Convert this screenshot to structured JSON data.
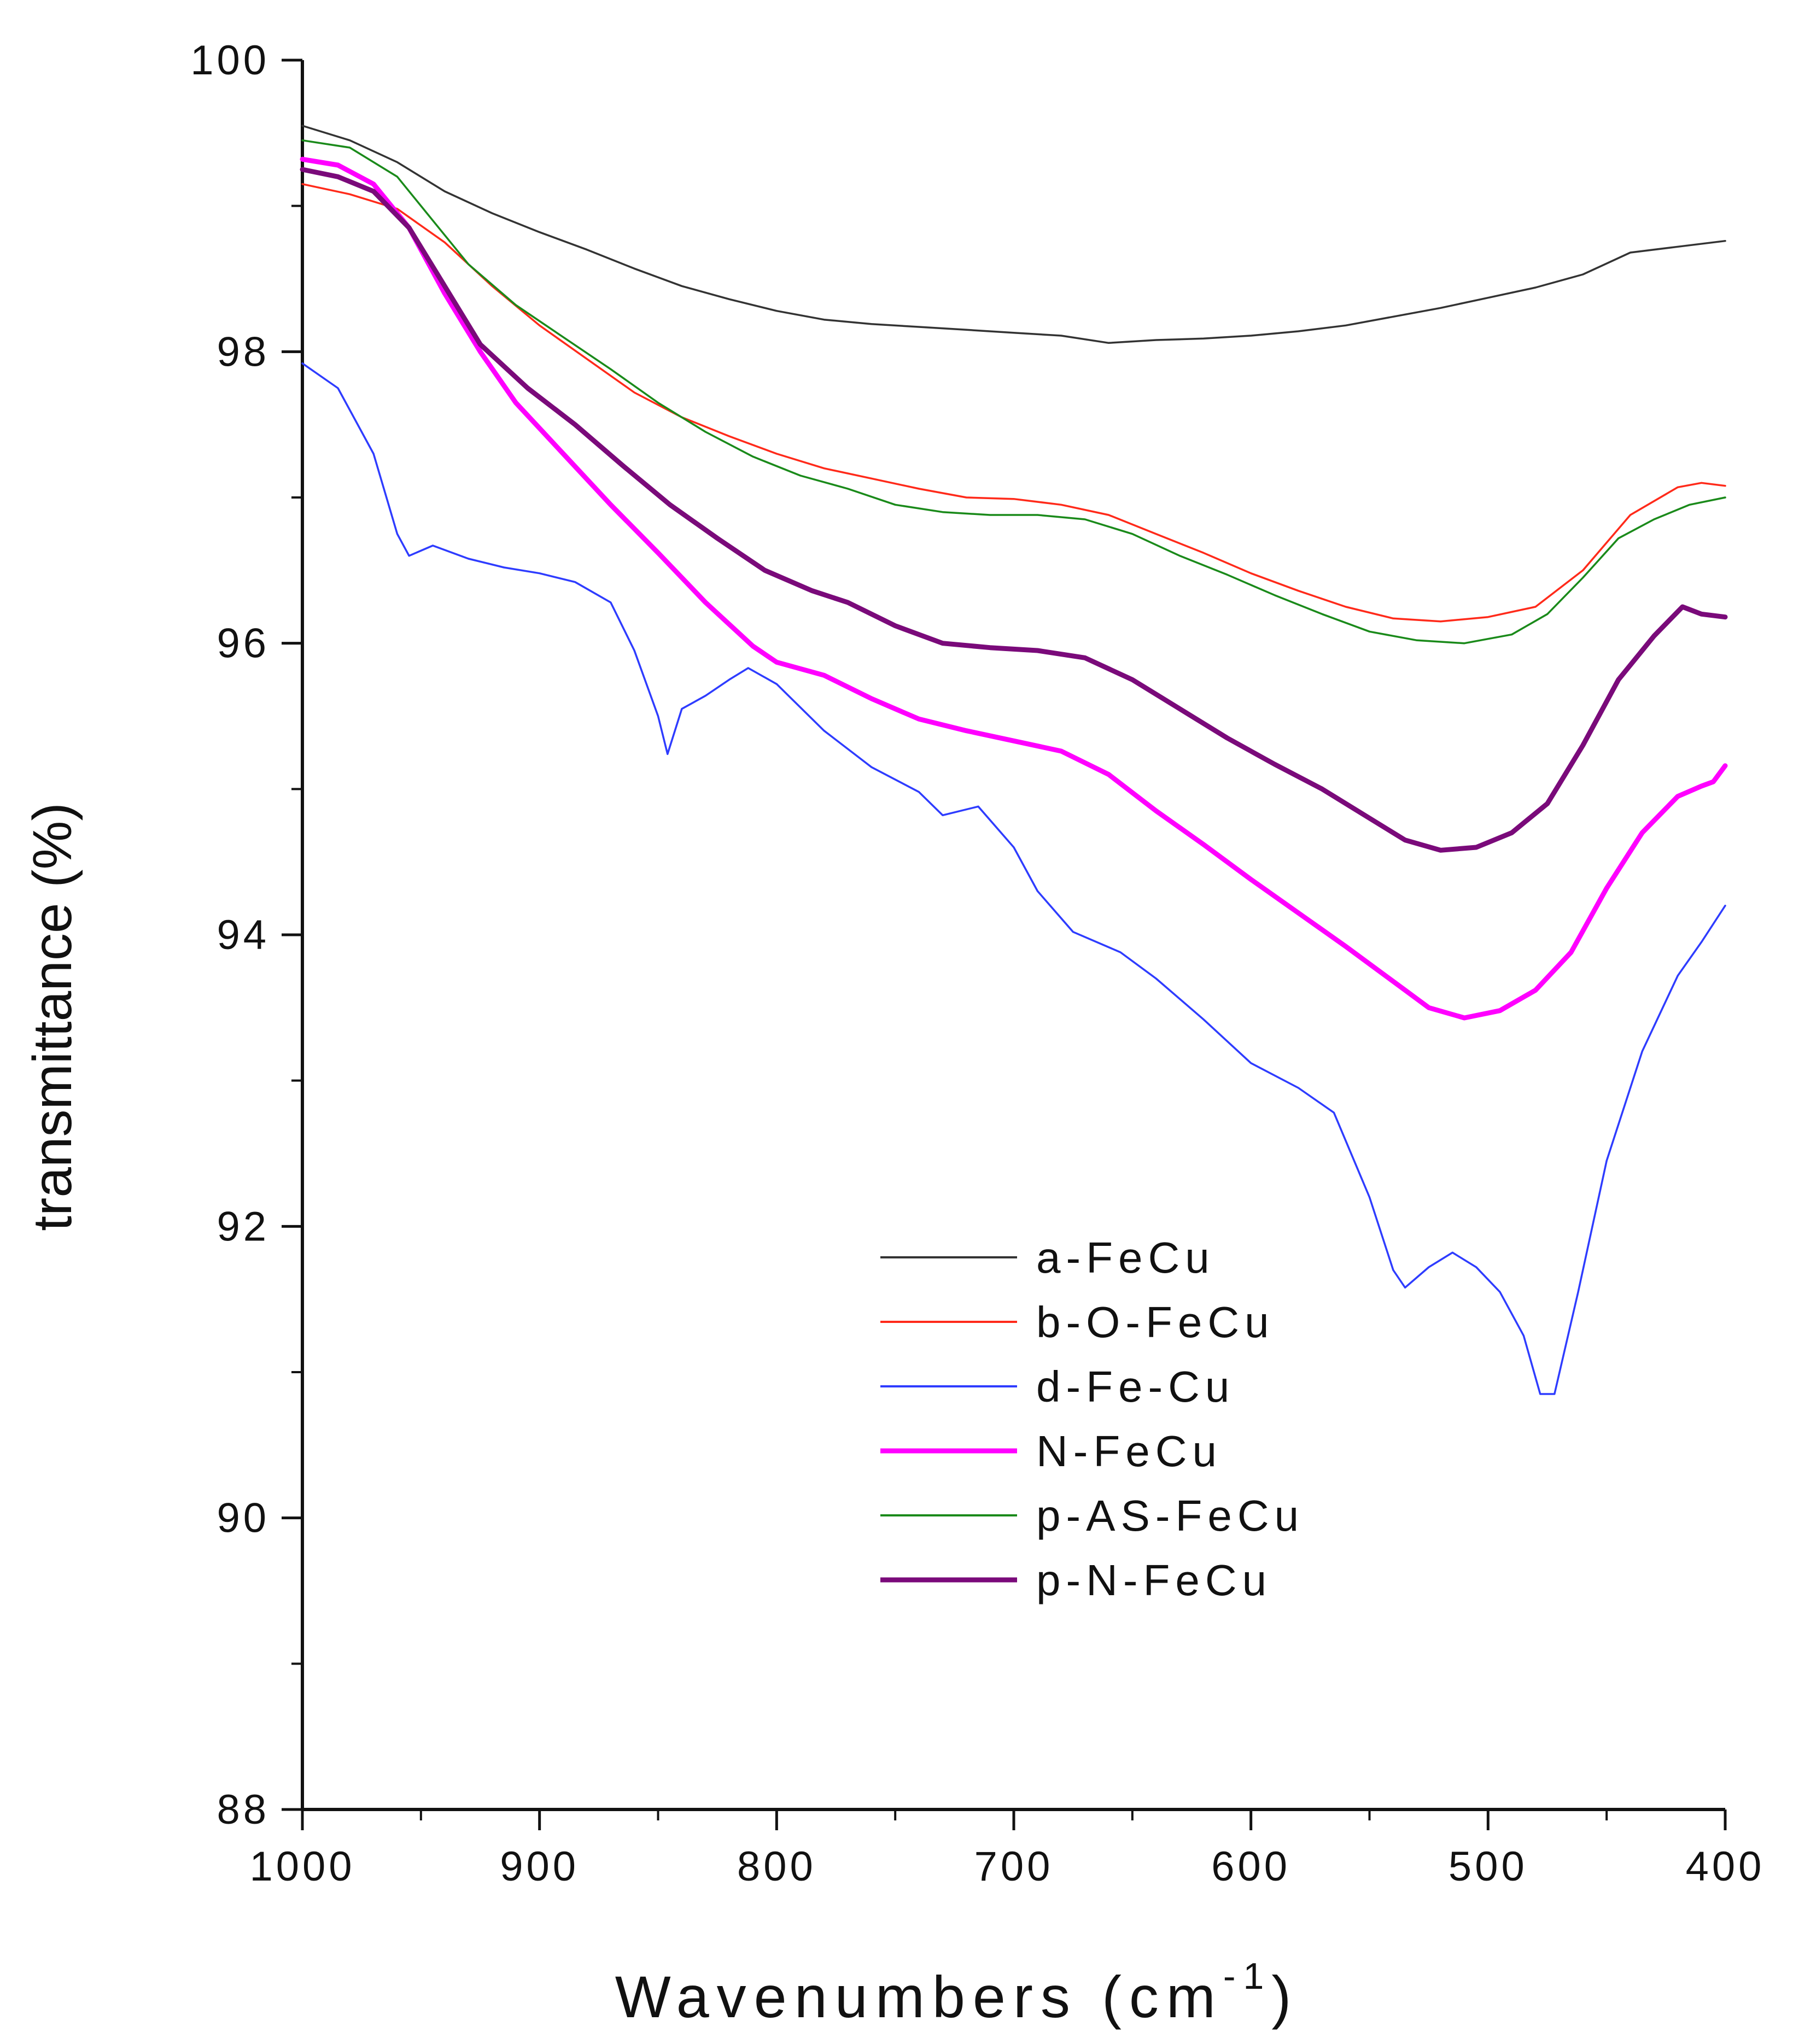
{
  "chart_data": {
    "type": "line",
    "title": "",
    "xlabel": "Wavenumbers (cm",
    "xlabel_sup": "-1",
    "xlabel_close": ")",
    "ylabel": "transmittance (%)",
    "xlim": [
      1000,
      400
    ],
    "ylim": [
      88,
      100
    ],
    "x_ticks": [
      1000,
      900,
      800,
      700,
      600,
      500,
      400
    ],
    "y_ticks": [
      88,
      90,
      92,
      94,
      96,
      98,
      100
    ],
    "x_tick_labels": [
      "1000",
      "900",
      "800",
      "700",
      "600",
      "500",
      "400"
    ],
    "y_tick_labels": [
      "88",
      "90",
      "92",
      "94",
      "96",
      "98",
      "100"
    ],
    "grid": false,
    "legend_position": "center-right",
    "series": [
      {
        "name": "a-FeCu",
        "color": "#333333",
        "width": "thin",
        "points": [
          [
            1000,
            99.55
          ],
          [
            980,
            99.45
          ],
          [
            960,
            99.3
          ],
          [
            940,
            99.1
          ],
          [
            920,
            98.95
          ],
          [
            900,
            98.82
          ],
          [
            880,
            98.7
          ],
          [
            860,
            98.57
          ],
          [
            840,
            98.45
          ],
          [
            820,
            98.36
          ],
          [
            800,
            98.28
          ],
          [
            780,
            98.22
          ],
          [
            760,
            98.19
          ],
          [
            740,
            98.17
          ],
          [
            720,
            98.15
          ],
          [
            700,
            98.13
          ],
          [
            680,
            98.11
          ],
          [
            660,
            98.06
          ],
          [
            640,
            98.08
          ],
          [
            620,
            98.09
          ],
          [
            600,
            98.11
          ],
          [
            580,
            98.14
          ],
          [
            560,
            98.18
          ],
          [
            540,
            98.24
          ],
          [
            520,
            98.3
          ],
          [
            500,
            98.37
          ],
          [
            480,
            98.44
          ],
          [
            460,
            98.53
          ],
          [
            440,
            98.68
          ],
          [
            420,
            98.72
          ],
          [
            400,
            98.76
          ]
        ]
      },
      {
        "name": "b-O-FeCu",
        "color": "#ff2a1a",
        "width": "thin",
        "points": [
          [
            1000,
            99.15
          ],
          [
            980,
            99.08
          ],
          [
            960,
            98.98
          ],
          [
            940,
            98.75
          ],
          [
            920,
            98.45
          ],
          [
            900,
            98.18
          ],
          [
            880,
            97.95
          ],
          [
            860,
            97.72
          ],
          [
            840,
            97.55
          ],
          [
            820,
            97.42
          ],
          [
            800,
            97.3
          ],
          [
            780,
            97.2
          ],
          [
            760,
            97.13
          ],
          [
            740,
            97.06
          ],
          [
            720,
            97.0
          ],
          [
            700,
            96.99
          ],
          [
            680,
            96.95
          ],
          [
            660,
            96.88
          ],
          [
            640,
            96.75
          ],
          [
            620,
            96.62
          ],
          [
            600,
            96.48
          ],
          [
            580,
            96.36
          ],
          [
            560,
            96.25
          ],
          [
            540,
            96.17
          ],
          [
            520,
            96.15
          ],
          [
            500,
            96.18
          ],
          [
            480,
            96.25
          ],
          [
            460,
            96.5
          ],
          [
            440,
            96.88
          ],
          [
            420,
            97.07
          ],
          [
            410,
            97.1
          ],
          [
            400,
            97.08
          ]
        ]
      },
      {
        "name": "d-Fe-Cu",
        "color": "#2e3cff",
        "width": "thin",
        "points": [
          [
            1000,
            97.92
          ],
          [
            985,
            97.75
          ],
          [
            970,
            97.3
          ],
          [
            960,
            96.75
          ],
          [
            955,
            96.6
          ],
          [
            945,
            96.67
          ],
          [
            930,
            96.58
          ],
          [
            915,
            96.52
          ],
          [
            900,
            96.48
          ],
          [
            885,
            96.42
          ],
          [
            870,
            96.28
          ],
          [
            860,
            95.95
          ],
          [
            850,
            95.5
          ],
          [
            846,
            95.24
          ],
          [
            840,
            95.55
          ],
          [
            830,
            95.64
          ],
          [
            820,
            95.75
          ],
          [
            812,
            95.83
          ],
          [
            800,
            95.72
          ],
          [
            780,
            95.4
          ],
          [
            760,
            95.15
          ],
          [
            740,
            94.98
          ],
          [
            730,
            94.82
          ],
          [
            715,
            94.88
          ],
          [
            700,
            94.6
          ],
          [
            690,
            94.3
          ],
          [
            675,
            94.02
          ],
          [
            655,
            93.88
          ],
          [
            640,
            93.7
          ],
          [
            620,
            93.42
          ],
          [
            600,
            93.12
          ],
          [
            580,
            92.95
          ],
          [
            565,
            92.78
          ],
          [
            550,
            92.2
          ],
          [
            540,
            91.7
          ],
          [
            535,
            91.58
          ],
          [
            525,
            91.72
          ],
          [
            515,
            91.82
          ],
          [
            505,
            91.72
          ],
          [
            495,
            91.55
          ],
          [
            485,
            91.25
          ],
          [
            478,
            90.85
          ],
          [
            472,
            90.85
          ],
          [
            462,
            91.55
          ],
          [
            450,
            92.45
          ],
          [
            435,
            93.2
          ],
          [
            420,
            93.72
          ],
          [
            410,
            93.95
          ],
          [
            400,
            94.2
          ]
        ]
      },
      {
        "name": "N-FeCu",
        "color": "#ff00ff",
        "width": "thick",
        "points": [
          [
            1000,
            99.32
          ],
          [
            985,
            99.28
          ],
          [
            970,
            99.15
          ],
          [
            955,
            98.85
          ],
          [
            940,
            98.4
          ],
          [
            925,
            98.0
          ],
          [
            910,
            97.65
          ],
          [
            890,
            97.3
          ],
          [
            870,
            96.95
          ],
          [
            850,
            96.62
          ],
          [
            830,
            96.28
          ],
          [
            810,
            95.98
          ],
          [
            800,
            95.87
          ],
          [
            780,
            95.78
          ],
          [
            760,
            95.62
          ],
          [
            740,
            95.48
          ],
          [
            720,
            95.4
          ],
          [
            700,
            95.33
          ],
          [
            680,
            95.26
          ],
          [
            660,
            95.1
          ],
          [
            640,
            94.85
          ],
          [
            620,
            94.62
          ],
          [
            600,
            94.38
          ],
          [
            580,
            94.15
          ],
          [
            560,
            93.92
          ],
          [
            540,
            93.68
          ],
          [
            525,
            93.5
          ],
          [
            510,
            93.43
          ],
          [
            495,
            93.48
          ],
          [
            480,
            93.62
          ],
          [
            465,
            93.88
          ],
          [
            450,
            94.32
          ],
          [
            435,
            94.7
          ],
          [
            420,
            94.95
          ],
          [
            410,
            95.02
          ],
          [
            405,
            95.05
          ],
          [
            400,
            95.16
          ]
        ]
      },
      {
        "name": "p-AS-FeCu",
        "color": "#1a8a1a",
        "width": "thin",
        "points": [
          [
            1000,
            99.45
          ],
          [
            980,
            99.4
          ],
          [
            960,
            99.2
          ],
          [
            945,
            98.9
          ],
          [
            930,
            98.6
          ],
          [
            910,
            98.32
          ],
          [
            890,
            98.1
          ],
          [
            870,
            97.88
          ],
          [
            850,
            97.65
          ],
          [
            830,
            97.45
          ],
          [
            810,
            97.28
          ],
          [
            790,
            97.15
          ],
          [
            770,
            97.06
          ],
          [
            750,
            96.95
          ],
          [
            730,
            96.9
          ],
          [
            710,
            96.88
          ],
          [
            690,
            96.88
          ],
          [
            670,
            96.85
          ],
          [
            650,
            96.75
          ],
          [
            630,
            96.6
          ],
          [
            610,
            96.47
          ],
          [
            590,
            96.33
          ],
          [
            570,
            96.2
          ],
          [
            550,
            96.08
          ],
          [
            530,
            96.02
          ],
          [
            510,
            96.0
          ],
          [
            490,
            96.06
          ],
          [
            475,
            96.2
          ],
          [
            460,
            96.45
          ],
          [
            445,
            96.72
          ],
          [
            430,
            96.85
          ],
          [
            415,
            96.95
          ],
          [
            400,
            97.0
          ]
        ]
      },
      {
        "name": "p-N-FeCu",
        "color": "#7a0a7a",
        "width": "thick",
        "points": [
          [
            1000,
            99.25
          ],
          [
            985,
            99.2
          ],
          [
            970,
            99.1
          ],
          [
            955,
            98.85
          ],
          [
            940,
            98.45
          ],
          [
            925,
            98.05
          ],
          [
            905,
            97.75
          ],
          [
            885,
            97.5
          ],
          [
            865,
            97.22
          ],
          [
            845,
            96.95
          ],
          [
            825,
            96.72
          ],
          [
            805,
            96.5
          ],
          [
            785,
            96.36
          ],
          [
            770,
            96.28
          ],
          [
            750,
            96.12
          ],
          [
            730,
            96.0
          ],
          [
            710,
            95.97
          ],
          [
            690,
            95.95
          ],
          [
            670,
            95.9
          ],
          [
            650,
            95.75
          ],
          [
            630,
            95.55
          ],
          [
            610,
            95.35
          ],
          [
            590,
            95.17
          ],
          [
            570,
            95.0
          ],
          [
            550,
            94.8
          ],
          [
            535,
            94.65
          ],
          [
            520,
            94.58
          ],
          [
            505,
            94.6
          ],
          [
            490,
            94.7
          ],
          [
            475,
            94.9
          ],
          [
            460,
            95.3
          ],
          [
            445,
            95.75
          ],
          [
            430,
            96.05
          ],
          [
            418,
            96.25
          ],
          [
            410,
            96.2
          ],
          [
            400,
            96.18
          ]
        ]
      }
    ]
  }
}
